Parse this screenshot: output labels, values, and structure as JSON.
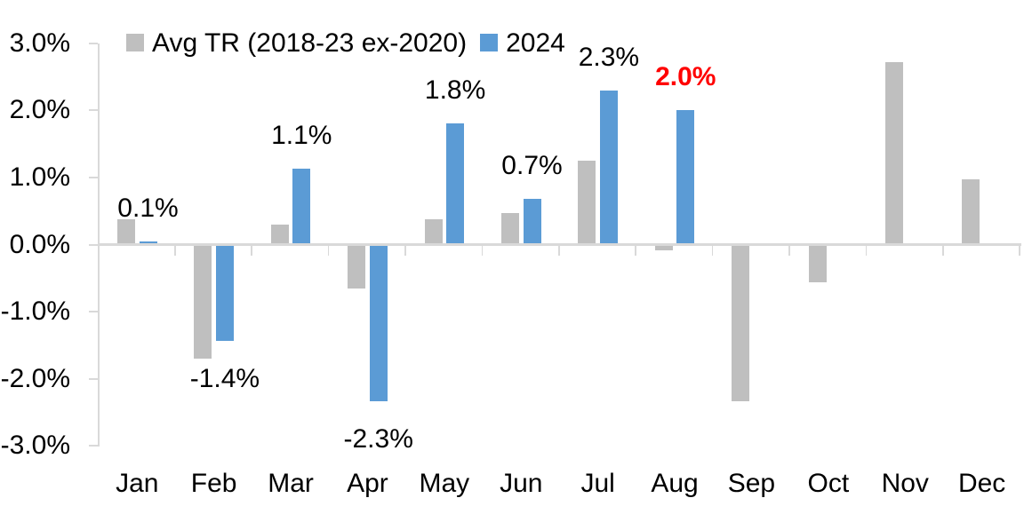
{
  "chart_data": {
    "type": "bar",
    "title": "",
    "xlabel": "",
    "ylabel": "",
    "categories": [
      "Jan",
      "Feb",
      "Mar",
      "Apr",
      "May",
      "Jun",
      "Jul",
      "Aug",
      "Sep",
      "Oct",
      "Nov",
      "Dec"
    ],
    "series": [
      {
        "name": "Avg TR (2018-23 ex-2020)",
        "color": "#BFBFBF",
        "values": [
          0.38,
          -1.7,
          0.3,
          -0.65,
          0.38,
          0.47,
          1.25,
          -0.08,
          -2.34,
          -0.56,
          2.72,
          0.97
        ]
      },
      {
        "name": "2024",
        "color": "#5B9BD5",
        "values": [
          0.05,
          -1.43,
          1.13,
          -2.33,
          1.8,
          0.68,
          2.3,
          2.0,
          null,
          null,
          null,
          null
        ]
      }
    ],
    "data_labels": [
      {
        "category": "Jan",
        "text": "0.1%",
        "color": "#000000",
        "bold": false
      },
      {
        "category": "Feb",
        "text": "-1.4%",
        "color": "#000000",
        "bold": false
      },
      {
        "category": "Mar",
        "text": "1.1%",
        "color": "#000000",
        "bold": false
      },
      {
        "category": "Apr",
        "text": "-2.3%",
        "color": "#000000",
        "bold": false
      },
      {
        "category": "May",
        "text": "1.8%",
        "color": "#000000",
        "bold": false
      },
      {
        "category": "Jun",
        "text": "0.7%",
        "color": "#000000",
        "bold": false
      },
      {
        "category": "Jul",
        "text": "2.3%",
        "color": "#000000",
        "bold": false
      },
      {
        "category": "Aug",
        "text": "2.0%",
        "color": "#FF0000",
        "bold": true
      }
    ],
    "y_axis": {
      "min": -3,
      "max": 3,
      "step": 1,
      "tick_labels": [
        "3.0%",
        "2.0%",
        "1.0%",
        "0.0%",
        "-1.0%",
        "-2.0%",
        "-3.0%"
      ],
      "axis_color": "#D9D9D9",
      "text_color": "#000000"
    },
    "legend": {
      "position": "top-left"
    },
    "grid": false
  }
}
